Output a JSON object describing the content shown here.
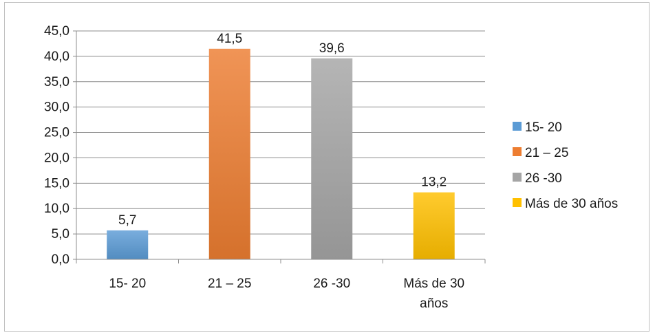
{
  "chart_data": {
    "type": "bar",
    "title": "",
    "xlabel": "",
    "ylabel": "",
    "categories": [
      "15- 20",
      "21 – 25",
      "26 -30",
      "Más de 30 años"
    ],
    "values": [
      5.7,
      41.5,
      39.6,
      13.2
    ],
    "value_labels": [
      "5,7",
      "41,5",
      "39,6",
      "13,2"
    ],
    "ylim": [
      0,
      45
    ],
    "y_ticks": [
      0,
      5,
      10,
      15,
      20,
      25,
      30,
      35,
      40,
      45
    ],
    "y_tick_labels": [
      "0,0",
      "5,0",
      "10,0",
      "15,0",
      "20,0",
      "25,0",
      "30,0",
      "35,0",
      "40,0",
      "45,0"
    ],
    "grid": true,
    "legend_position": "right",
    "legend": [
      "15- 20",
      "21 – 25",
      "26 -30",
      "Más de 30 años"
    ],
    "colors": [
      "#5b9bd5",
      "#ed7d31",
      "#a5a5a5",
      "#ffc000"
    ]
  }
}
